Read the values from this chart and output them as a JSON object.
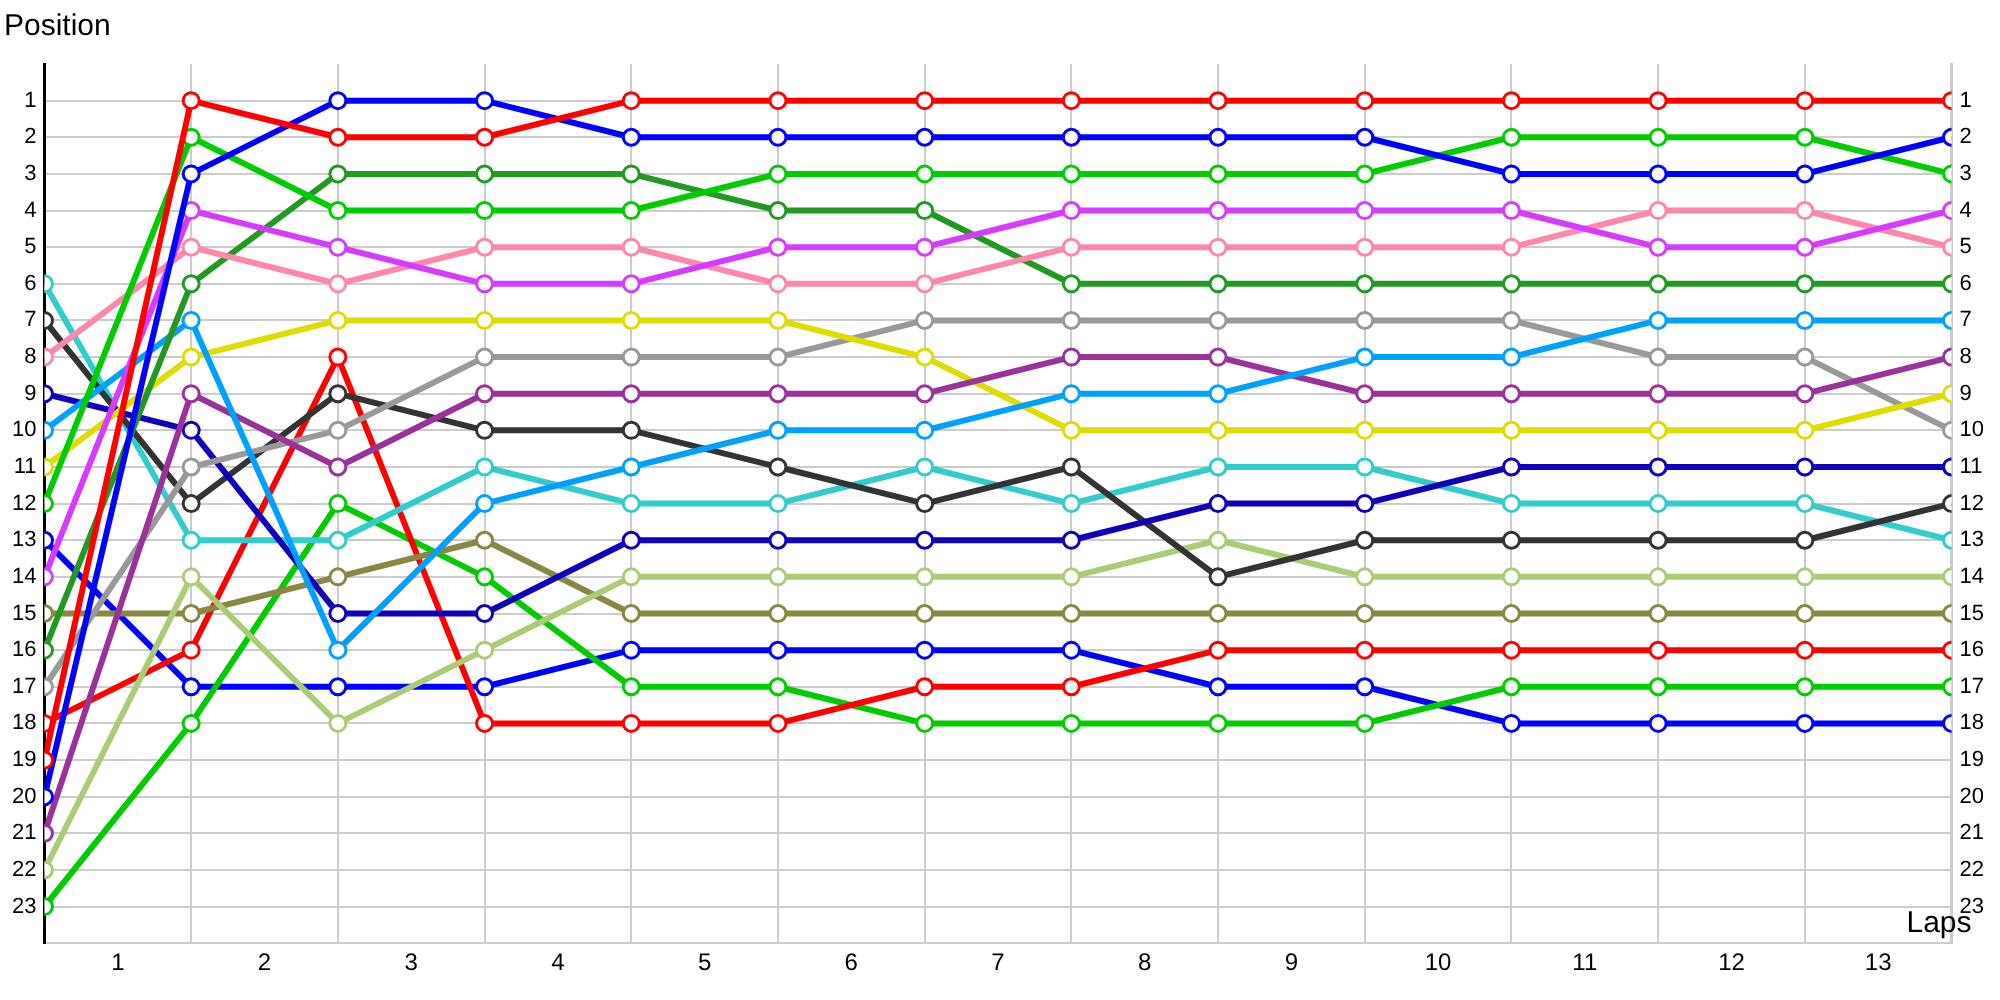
{
  "chart_data": {
    "type": "line",
    "ylabel": "Position",
    "xlabel": "Laps",
    "x": [
      0,
      1,
      2,
      3,
      4,
      5,
      6,
      7,
      8,
      9,
      10,
      11,
      12,
      13
    ],
    "xlim": [
      0,
      13
    ],
    "xticks": [
      {
        "value": 0,
        "label": null
      },
      {
        "value": 0.5,
        "label": "1"
      },
      {
        "value": 1,
        "label": null
      },
      {
        "value": 1.5,
        "label": "2"
      },
      {
        "value": 2,
        "label": null
      },
      {
        "value": 2.5,
        "label": "3"
      },
      {
        "value": 3,
        "label": null
      },
      {
        "value": 3.5,
        "label": "4"
      },
      {
        "value": 4,
        "label": null
      },
      {
        "value": 4.5,
        "label": "5"
      },
      {
        "value": 5,
        "label": null
      },
      {
        "value": 5.5,
        "label": "6"
      },
      {
        "value": 6,
        "label": null
      },
      {
        "value": 6.5,
        "label": "7"
      },
      {
        "value": 7,
        "label": null
      },
      {
        "value": 7.5,
        "label": "8"
      },
      {
        "value": 8,
        "label": null
      },
      {
        "value": 8.5,
        "label": "9"
      },
      {
        "value": 9,
        "label": null
      },
      {
        "value": 9.5,
        "label": "10"
      },
      {
        "value": 10,
        "label": null
      },
      {
        "value": 10.5,
        "label": "11"
      },
      {
        "value": 11,
        "label": null
      },
      {
        "value": 11.5,
        "label": "12"
      },
      {
        "value": 12,
        "label": null
      },
      {
        "value": 12.5,
        "label": "13"
      },
      {
        "value": 13,
        "label": null
      }
    ],
    "ylim": [
      24,
      0
    ],
    "yticks": [
      1,
      2,
      3,
      4,
      5,
      6,
      7,
      8,
      9,
      10,
      11,
      12,
      13,
      14,
      15,
      16,
      17,
      18,
      19,
      20,
      21,
      22,
      23
    ],
    "y2lim": [
      24,
      0
    ],
    "y2ticks": [
      1,
      2,
      3,
      4,
      5,
      6,
      7,
      8,
      9,
      10,
      11,
      12,
      13,
      14,
      15,
      16,
      17,
      18,
      19,
      20,
      21,
      22,
      23
    ],
    "grid": true,
    "legend": false,
    "marker": "circle",
    "line_style": "solid",
    "series": [
      {
        "color": "#ff0000",
        "values": [
          19,
          1,
          2,
          2,
          1,
          1,
          1,
          1,
          1,
          1,
          1,
          1,
          1,
          1
        ]
      },
      {
        "color": "#0000ff",
        "values": [
          20,
          3,
          1,
          1,
          2,
          2,
          2,
          2,
          2,
          2,
          3,
          3,
          3,
          2
        ]
      },
      {
        "color": "#00cc00",
        "values": [
          12,
          2,
          4,
          4,
          4,
          3,
          3,
          3,
          3,
          3,
          2,
          2,
          2,
          3
        ]
      },
      {
        "color": "#d63cff",
        "values": [
          14,
          4,
          5,
          6,
          6,
          5,
          5,
          4,
          4,
          4,
          4,
          5,
          5,
          4
        ]
      },
      {
        "color": "#ff88aa",
        "values": [
          8,
          5,
          6,
          5,
          5,
          6,
          6,
          5,
          5,
          5,
          5,
          4,
          4,
          5
        ]
      },
      {
        "color": "#229922",
        "values": [
          16,
          6,
          3,
          3,
          3,
          4,
          4,
          6,
          6,
          6,
          6,
          6,
          6,
          6
        ]
      },
      {
        "color": "#00a0ff",
        "values": [
          10,
          7,
          16,
          12,
          11,
          10,
          10,
          9,
          9,
          8,
          8,
          7,
          7,
          7
        ]
      },
      {
        "color": "#993399",
        "values": [
          21,
          9,
          11,
          9,
          9,
          9,
          9,
          8,
          8,
          9,
          9,
          9,
          9,
          8
        ]
      },
      {
        "color": "#dddd00",
        "values": [
          11,
          8,
          7,
          7,
          7,
          7,
          8,
          10,
          10,
          10,
          10,
          10,
          10,
          9
        ]
      },
      {
        "color": "#999999",
        "values": [
          17,
          11,
          10,
          8,
          8,
          8,
          7,
          7,
          7,
          7,
          7,
          8,
          8,
          10
        ]
      },
      {
        "color": "#1100bb",
        "values": [
          9,
          10,
          15,
          15,
          13,
          13,
          13,
          13,
          12,
          12,
          11,
          11,
          11,
          11
        ]
      },
      {
        "color": "#333333",
        "values": [
          7,
          12,
          9,
          10,
          10,
          11,
          12,
          11,
          14,
          13,
          13,
          13,
          13,
          12
        ]
      },
      {
        "color": "#33cccc",
        "values": [
          6,
          13,
          13,
          11,
          12,
          12,
          11,
          12,
          11,
          11,
          12,
          12,
          12,
          13
        ]
      },
      {
        "color": "#aacc77",
        "values": [
          22,
          14,
          18,
          16,
          14,
          14,
          14,
          14,
          13,
          14,
          14,
          14,
          14,
          14
        ]
      },
      {
        "color": "#888844",
        "values": [
          15,
          15,
          14,
          13,
          15,
          15,
          15,
          15,
          15,
          15,
          15,
          15,
          15,
          15
        ]
      },
      {
        "color": "#ff0000",
        "values": [
          18,
          16,
          8,
          18,
          18,
          18,
          17,
          17,
          16,
          16,
          16,
          16,
          16,
          16
        ]
      },
      {
        "color": "#00cc00",
        "values": [
          23,
          18,
          12,
          14,
          17,
          17,
          18,
          18,
          18,
          18,
          17,
          17,
          17,
          17
        ]
      },
      {
        "color": "#0000ff",
        "values": [
          13,
          17,
          17,
          17,
          16,
          16,
          16,
          16,
          17,
          17,
          18,
          18,
          18,
          18
        ]
      }
    ]
  }
}
